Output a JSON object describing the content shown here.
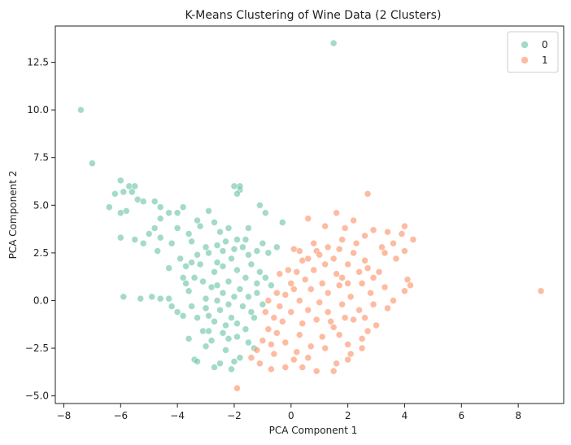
{
  "chart_data": {
    "type": "scatter",
    "title": "K-Means Clustering of Wine Data (2 Clusters)",
    "xlabel": "PCA Component 1",
    "ylabel": "PCA Component 2",
    "xlim": [
      -8.3,
      9.6
    ],
    "ylim": [
      -5.4,
      14.4
    ],
    "xticks": [
      -8,
      -6,
      -4,
      -2,
      0,
      2,
      4,
      6,
      8
    ],
    "yticks": [
      -5.0,
      -2.5,
      0.0,
      2.5,
      5.0,
      7.5,
      10.0,
      12.5
    ],
    "xtick_labels": [
      "−8",
      "−6",
      "−4",
      "−2",
      "0",
      "2",
      "4",
      "6",
      "8"
    ],
    "ytick_labels": [
      "−5.0",
      "−2.5",
      "0.0",
      "2.5",
      "5.0",
      "7.5",
      "10.0",
      "12.5"
    ],
    "grid": false,
    "legend_position": "top-right",
    "series": [
      {
        "name": "0",
        "color": "#66c2a5",
        "values": [
          [
            1.5,
            13.5
          ],
          [
            -7.4,
            10.0
          ],
          [
            -7.0,
            7.2
          ],
          [
            -6.0,
            6.3
          ],
          [
            -5.7,
            6.0
          ],
          [
            -5.5,
            6.0
          ],
          [
            -5.6,
            5.7
          ],
          [
            -5.9,
            5.7
          ],
          [
            -6.2,
            5.6
          ],
          [
            -5.4,
            5.3
          ],
          [
            -5.2,
            5.2
          ],
          [
            -5.8,
            4.7
          ],
          [
            -6.0,
            4.6
          ],
          [
            -6.4,
            4.9
          ],
          [
            -4.8,
            5.2
          ],
          [
            -4.6,
            4.9
          ],
          [
            -4.3,
            4.6
          ],
          [
            -4.0,
            4.6
          ],
          [
            -3.8,
            4.9
          ],
          [
            -1.8,
            5.8
          ],
          [
            -1.8,
            6.0
          ],
          [
            -2.0,
            6.0
          ],
          [
            -1.9,
            5.6
          ],
          [
            -1.1,
            5.0
          ],
          [
            -0.9,
            4.6
          ],
          [
            -0.3,
            4.1
          ],
          [
            -2.9,
            4.7
          ],
          [
            -3.3,
            4.2
          ],
          [
            -4.6,
            4.3
          ],
          [
            -4.8,
            3.8
          ],
          [
            -5.0,
            3.5
          ],
          [
            -5.2,
            3.0
          ],
          [
            -4.7,
            2.6
          ],
          [
            -4.2,
            3.0
          ],
          [
            -4.6,
            3.3
          ],
          [
            -4.0,
            3.8
          ],
          [
            -5.9,
            0.2
          ],
          [
            -5.3,
            0.1
          ],
          [
            -4.9,
            0.2
          ],
          [
            -4.6,
            0.1
          ],
          [
            -4.3,
            0.1
          ],
          [
            -5.5,
            3.2
          ],
          [
            -6.0,
            3.3
          ],
          [
            -1.5,
            3.8
          ],
          [
            -1.6,
            3.2
          ],
          [
            -1.0,
            3.0
          ],
          [
            -0.5,
            2.8
          ],
          [
            -0.8,
            2.5
          ],
          [
            -3.4,
            -3.1
          ],
          [
            -3.3,
            -3.2
          ],
          [
            -3.0,
            -2.4
          ],
          [
            -2.7,
            -3.5
          ],
          [
            -2.5,
            -3.3
          ],
          [
            -2.1,
            -3.6
          ],
          [
            -2.0,
            -3.2
          ],
          [
            -1.8,
            -3.0
          ],
          [
            -1.3,
            -2.5
          ],
          [
            -1.5,
            -2.2
          ],
          [
            -2.2,
            -2.0
          ],
          [
            -3.6,
            -2.0
          ],
          [
            -3.8,
            -0.8
          ],
          [
            -4.0,
            -0.6
          ],
          [
            -4.2,
            -0.3
          ],
          [
            -3.7,
            1.8
          ],
          [
            -3.9,
            2.2
          ],
          [
            -4.3,
            1.7
          ],
          [
            -3.5,
            3.1
          ],
          [
            -3.6,
            3.5
          ],
          [
            -3.2,
            3.9
          ],
          [
            -2.7,
            4.1
          ],
          [
            -2.5,
            3.6
          ],
          [
            -2.2,
            3.8
          ],
          [
            -1.9,
            3.2
          ],
          [
            -1.7,
            2.8
          ],
          [
            -1.2,
            2.6
          ],
          [
            -1.4,
            1.9
          ],
          [
            -1.1,
            1.5
          ],
          [
            -0.9,
            1.2
          ],
          [
            -0.7,
            0.8
          ],
          [
            -1.2,
            0.4
          ],
          [
            -1.0,
            -0.2
          ],
          [
            -1.3,
            -0.9
          ],
          [
            -1.6,
            -1.5
          ],
          [
            -1.9,
            -1.9
          ],
          [
            -2.3,
            -2.6
          ],
          [
            -2.8,
            -2.1
          ],
          [
            -3.1,
            -1.6
          ],
          [
            -3.3,
            -0.9
          ],
          [
            -3.5,
            -0.3
          ],
          [
            -3.6,
            0.5
          ],
          [
            -3.4,
            1.2
          ],
          [
            -3.2,
            1.9
          ],
          [
            -2.9,
            2.5
          ],
          [
            -2.6,
            2.9
          ],
          [
            -2.3,
            3.1
          ],
          [
            -2.0,
            2.7
          ],
          [
            -2.6,
            0.0
          ],
          [
            -2.4,
            0.4
          ],
          [
            -2.8,
            0.7
          ],
          [
            -2.2,
            1.0
          ],
          [
            -2.0,
            0.2
          ],
          [
            -2.5,
            -0.5
          ],
          [
            -2.9,
            -0.8
          ],
          [
            -2.1,
            -0.9
          ],
          [
            -1.8,
            0.6
          ],
          [
            -1.6,
            1.2
          ],
          [
            -2.7,
            1.5
          ],
          [
            -3.0,
            0.1
          ],
          [
            -3.1,
            1.0
          ],
          [
            -2.4,
            1.8
          ],
          [
            -1.9,
            1.6
          ],
          [
            -2.3,
            -1.3
          ],
          [
            -2.7,
            -1.1
          ],
          [
            -3.0,
            -0.4
          ],
          [
            -1.7,
            -0.3
          ],
          [
            -1.5,
            0.2
          ],
          [
            -2.1,
            2.2
          ],
          [
            -2.6,
            2.0
          ],
          [
            -3.3,
            2.4
          ],
          [
            -3.7,
            0.9
          ],
          [
            -2.9,
            -1.6
          ],
          [
            -2.4,
            -1.7
          ],
          [
            -1.9,
            -1.2
          ],
          [
            -1.4,
            -0.6
          ],
          [
            -1.2,
            0.9
          ],
          [
            -1.5,
            2.4
          ],
          [
            -2.4,
            2.6
          ],
          [
            -3.0,
            2.8
          ],
          [
            -3.5,
            2.0
          ],
          [
            -3.8,
            1.2
          ],
          [
            -2.2,
            -0.2
          ],
          [
            -2.6,
            0.8
          ]
        ]
      },
      {
        "name": "1",
        "color": "#fc8d62",
        "values": [
          [
            8.8,
            0.5
          ],
          [
            2.7,
            5.6
          ],
          [
            1.6,
            4.6
          ],
          [
            2.2,
            4.2
          ],
          [
            0.6,
            4.3
          ],
          [
            1.2,
            3.9
          ],
          [
            1.9,
            3.8
          ],
          [
            2.6,
            3.4
          ],
          [
            2.9,
            3.7
          ],
          [
            3.4,
            3.6
          ],
          [
            3.9,
            3.5
          ],
          [
            4.0,
            3.9
          ],
          [
            3.6,
            3.0
          ],
          [
            4.3,
            3.2
          ],
          [
            4.0,
            2.6
          ],
          [
            3.7,
            2.2
          ],
          [
            3.3,
            2.5
          ],
          [
            4.1,
            1.1
          ],
          [
            4.2,
            0.8
          ],
          [
            4.0,
            0.5
          ],
          [
            3.6,
            0.0
          ],
          [
            3.4,
            -0.4
          ],
          [
            2.9,
            -0.2
          ],
          [
            3.0,
            -1.3
          ],
          [
            2.7,
            -1.6
          ],
          [
            2.5,
            -2.0
          ],
          [
            2.5,
            -2.5
          ],
          [
            2.1,
            -2.8
          ],
          [
            2.0,
            -3.1
          ],
          [
            1.6,
            -3.3
          ],
          [
            1.5,
            -3.7
          ],
          [
            0.9,
            -3.7
          ],
          [
            0.4,
            -3.5
          ],
          [
            -0.2,
            -3.5
          ],
          [
            -0.7,
            -3.6
          ],
          [
            -1.1,
            -3.3
          ],
          [
            -1.9,
            -4.6
          ],
          [
            -1.4,
            -3.0
          ],
          [
            -1.2,
            -2.6
          ],
          [
            -1.0,
            -2.1
          ],
          [
            -0.8,
            -1.5
          ],
          [
            -0.6,
            -0.9
          ],
          [
            -0.4,
            -0.3
          ],
          [
            -0.2,
            0.3
          ],
          [
            0.0,
            0.9
          ],
          [
            0.2,
            1.5
          ],
          [
            0.4,
            2.1
          ],
          [
            0.3,
            2.6
          ],
          [
            0.9,
            2.6
          ],
          [
            1.3,
            2.8
          ],
          [
            1.7,
            2.7
          ],
          [
            2.2,
            2.5
          ],
          [
            2.6,
            2.1
          ],
          [
            2.4,
            1.5
          ],
          [
            2.9,
            1.2
          ],
          [
            2.0,
            0.9
          ],
          [
            1.6,
            1.4
          ],
          [
            1.2,
            1.9
          ],
          [
            0.8,
            1.6
          ],
          [
            0.5,
            1.1
          ],
          [
            0.1,
            0.6
          ],
          [
            0.3,
            0.0
          ],
          [
            0.6,
            -0.5
          ],
          [
            1.0,
            -0.1
          ],
          [
            1.3,
            0.4
          ],
          [
            1.7,
            0.8
          ],
          [
            2.1,
            0.2
          ],
          [
            2.4,
            -0.5
          ],
          [
            1.9,
            -0.9
          ],
          [
            1.5,
            -1.4
          ],
          [
            1.1,
            -1.9
          ],
          [
            0.7,
            -2.4
          ],
          [
            0.2,
            -2.7
          ],
          [
            -0.2,
            -2.2
          ],
          [
            -0.5,
            -1.7
          ],
          [
            -0.3,
            -1.1
          ],
          [
            0.0,
            -0.6
          ],
          [
            0.4,
            -1.2
          ],
          [
            0.9,
            -1.0
          ],
          [
            1.3,
            -0.6
          ],
          [
            1.8,
            -0.2
          ],
          [
            2.2,
            -1.0
          ],
          [
            1.7,
            -1.8
          ],
          [
            1.2,
            -2.5
          ],
          [
            0.6,
            -3.0
          ],
          [
            0.1,
            -3.1
          ],
          [
            -0.6,
            -2.8
          ],
          [
            -0.9,
            -0.6
          ],
          [
            -0.5,
            0.4
          ],
          [
            -0.1,
            1.6
          ],
          [
            0.6,
            2.2
          ],
          [
            1.0,
            2.4
          ],
          [
            1.5,
            2.2
          ],
          [
            2.0,
            1.9
          ],
          [
            2.7,
            1.7
          ],
          [
            3.1,
            1.5
          ],
          [
            3.3,
            0.7
          ],
          [
            2.8,
            0.4
          ],
          [
            2.6,
            -0.9
          ],
          [
            3.2,
            2.8
          ],
          [
            2.3,
            3.0
          ],
          [
            1.8,
            3.2
          ],
          [
            0.8,
            3.0
          ],
          [
            0.1,
            2.7
          ],
          [
            -0.4,
            1.4
          ],
          [
            0.7,
            0.6
          ],
          [
            1.4,
            -1.1
          ],
          [
            2.0,
            -2.3
          ],
          [
            -0.8,
            0.0
          ],
          [
            -0.7,
            -2.3
          ],
          [
            0.3,
            -1.8
          ],
          [
            1.8,
            1.2
          ],
          [
            2.5,
            0.9
          ],
          [
            1.1,
            0.9
          ]
        ]
      }
    ]
  }
}
